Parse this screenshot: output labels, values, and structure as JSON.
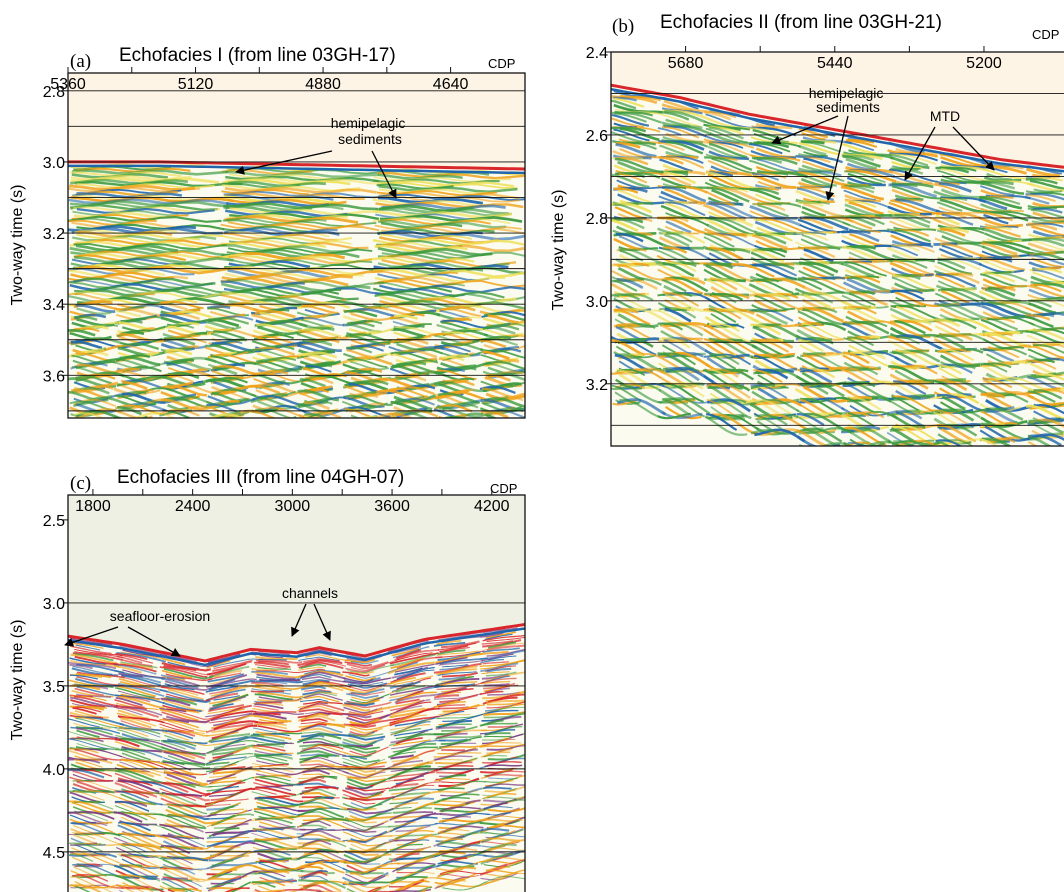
{
  "colors": {
    "water": "#fdf4e6",
    "water_c": "#eef0e4",
    "red": "#d8262b",
    "blue": "#1f66ad",
    "green": "#3b9a3f",
    "orange": "#f0a21a",
    "yellow": "#efe05a",
    "purple": "#7a3a86",
    "background": "#fbfbef"
  },
  "chart_data": [
    {
      "type": "heatmap",
      "panel_label": "(a)",
      "title": "Echofacies I (from line 03GH-17)",
      "xlabel": "CDP",
      "ylabel": "Two-way time (s)",
      "x_ticks": [
        "5360",
        "5120",
        "4880",
        "4640"
      ],
      "x_tick_values": [
        5360,
        5120,
        4880,
        4640
      ],
      "y_ticks": [
        "2.8",
        "3.0",
        "3.2",
        "3.4",
        "3.6"
      ],
      "y_tick_values": [
        2.8,
        3.0,
        3.2,
        3.4,
        3.6
      ],
      "ylim": [
        2.75,
        3.72
      ],
      "gridlines": [
        2.8,
        2.9,
        3.0,
        3.1,
        3.2,
        3.3,
        3.4,
        3.5,
        3.6,
        3.7
      ],
      "seafloor": {
        "x_frac": [
          0,
          0.2,
          0.4,
          0.6,
          0.8,
          1.0
        ],
        "twt": [
          3.0,
          3.0,
          3.005,
          3.01,
          3.015,
          3.02
        ]
      },
      "annotations": [
        {
          "text": "hemipelagic\nsediments",
          "points_to": [
            [
              0.36,
              3.03
            ],
            [
              0.72,
              3.11
            ]
          ]
        }
      ]
    },
    {
      "type": "heatmap",
      "panel_label": "(b)",
      "title": "Echofacies II (from line 03GH-21)",
      "xlabel": "CDP",
      "ylabel": "Two-way time (s)",
      "x_ticks": [
        "5680",
        "5440",
        "5200"
      ],
      "x_tick_values": [
        5680,
        5440,
        5200
      ],
      "y_ticks": [
        "2.4",
        "2.6",
        "2.8",
        "3.0",
        "3.2"
      ],
      "y_tick_values": [
        2.4,
        2.6,
        2.8,
        3.0,
        3.2
      ],
      "ylim": [
        2.4,
        3.35
      ],
      "gridlines": [
        2.5,
        2.6,
        2.7,
        2.8,
        2.9,
        3.0,
        3.1,
        3.2,
        3.3
      ],
      "seafloor": {
        "x_frac": [
          0,
          0.15,
          0.3,
          0.5,
          0.7,
          0.85,
          1.0
        ],
        "twt": [
          2.48,
          2.51,
          2.55,
          2.59,
          2.63,
          2.66,
          2.68
        ]
      },
      "annotations": [
        {
          "text": "hemipelagic\nsediments",
          "points_to": [
            [
              0.35,
              2.63
            ],
            [
              0.47,
              2.78
            ]
          ]
        },
        {
          "text": "MTD",
          "points_to": [
            [
              0.65,
              2.7
            ],
            [
              0.85,
              2.67
            ]
          ]
        }
      ]
    },
    {
      "type": "heatmap",
      "panel_label": "(c)",
      "title": "Echofacies III (from line 04GH-07)",
      "xlabel": "CDP",
      "ylabel": "Two-way time (s)",
      "x_ticks": [
        "1800",
        "2400",
        "3000",
        "3600",
        "4200"
      ],
      "x_tick_values": [
        1800,
        2400,
        3000,
        3600,
        4200
      ],
      "y_ticks": [
        "2.5",
        "3.0",
        "3.5",
        "4.0",
        "4.5"
      ],
      "y_tick_values": [
        2.5,
        3.0,
        3.5,
        4.0,
        4.5
      ],
      "ylim": [
        2.35,
        4.82
      ],
      "gridlines": [
        3.0,
        3.5,
        4.0,
        4.5
      ],
      "seafloor": {
        "x_frac": [
          0,
          0.12,
          0.3,
          0.4,
          0.5,
          0.55,
          0.65,
          0.78,
          1.0
        ],
        "twt": [
          3.2,
          3.25,
          3.35,
          3.28,
          3.3,
          3.27,
          3.32,
          3.22,
          3.13
        ]
      },
      "annotations": [
        {
          "text": "seafloor-erosion",
          "points_to": [
            [
              0.0,
              3.27
            ],
            [
              0.26,
              3.32
            ]
          ]
        },
        {
          "text": "channels",
          "points_to": [
            [
              0.5,
              3.28
            ],
            [
              0.6,
              3.28
            ]
          ]
        }
      ]
    }
  ]
}
